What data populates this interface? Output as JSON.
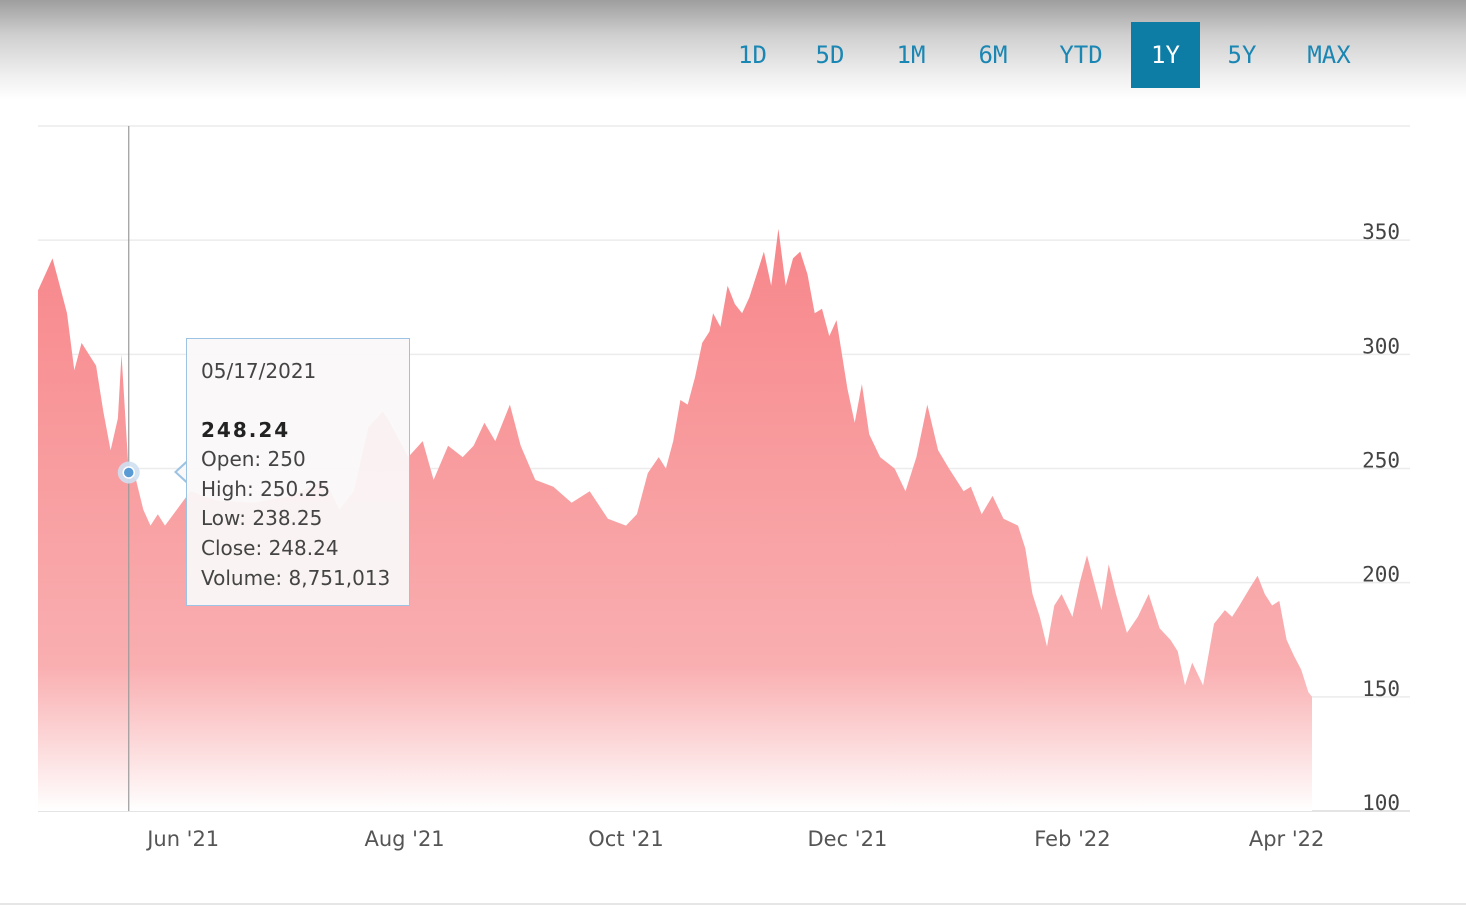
{
  "range_selector": {
    "items": [
      "1D",
      "5D",
      "1M",
      "6M",
      "YTD",
      "1Y",
      "5Y",
      "MAX"
    ],
    "active": "1Y",
    "accent_color": "#0e7da6",
    "text_color": "#1a86b3"
  },
  "tooltip": {
    "date": "05/17/2021",
    "price": "248.24",
    "open": "Open: 250",
    "high": "High: 250.25",
    "low": "Low: 238.25",
    "close": "Close: 248.24",
    "volume": "Volume: 8,751,013"
  },
  "chart_data": {
    "type": "area",
    "title": "",
    "xlabel": "",
    "ylabel": "",
    "ylim": [
      100,
      400
    ],
    "y_ticks": [
      100,
      150,
      200,
      250,
      300,
      350
    ],
    "x_ticks": [
      {
        "date": "2021-06-01",
        "label": "Jun '21"
      },
      {
        "date": "2021-08-01",
        "label": "Aug '21"
      },
      {
        "date": "2021-10-01",
        "label": "Oct '21"
      },
      {
        "date": "2021-12-01",
        "label": "Dec '21"
      },
      {
        "date": "2022-02-01",
        "label": "Feb '22"
      },
      {
        "date": "2022-04-01",
        "label": "Apr '22"
      }
    ],
    "x_range": [
      "2021-04-22",
      "2022-04-08"
    ],
    "grid": true,
    "legend": "none",
    "fill_color": "#f7888c",
    "highlight": {
      "date": "2021-05-17",
      "value": 248.24
    },
    "series": [
      {
        "points": [
          [
            "2021-04-22",
            328
          ],
          [
            "2021-04-24",
            335
          ],
          [
            "2021-04-26",
            342
          ],
          [
            "2021-04-28",
            330
          ],
          [
            "2021-04-30",
            318
          ],
          [
            "2021-05-02",
            293
          ],
          [
            "2021-05-04",
            305
          ],
          [
            "2021-05-06",
            300
          ],
          [
            "2021-05-08",
            295
          ],
          [
            "2021-05-10",
            275
          ],
          [
            "2021-05-12",
            258
          ],
          [
            "2021-05-14",
            272
          ],
          [
            "2021-05-15",
            300
          ],
          [
            "2021-05-17",
            248.24
          ],
          [
            "2021-05-19",
            245
          ],
          [
            "2021-05-21",
            232
          ],
          [
            "2021-05-23",
            225
          ],
          [
            "2021-05-25",
            230
          ],
          [
            "2021-05-27",
            225
          ],
          [
            "2021-06-03",
            240
          ],
          [
            "2021-06-10",
            236
          ],
          [
            "2021-06-20",
            235
          ],
          [
            "2021-07-01",
            238
          ],
          [
            "2021-07-10",
            245
          ],
          [
            "2021-07-14",
            232
          ],
          [
            "2021-07-18",
            240
          ],
          [
            "2021-07-22",
            268
          ],
          [
            "2021-07-26",
            275
          ],
          [
            "2021-07-28",
            270
          ],
          [
            "2021-08-02",
            255
          ],
          [
            "2021-08-06",
            262
          ],
          [
            "2021-08-09",
            245
          ],
          [
            "2021-08-13",
            260
          ],
          [
            "2021-08-17",
            255
          ],
          [
            "2021-08-20",
            260
          ],
          [
            "2021-08-23",
            270
          ],
          [
            "2021-08-26",
            262
          ],
          [
            "2021-08-30",
            278
          ],
          [
            "2021-09-02",
            260
          ],
          [
            "2021-09-06",
            245
          ],
          [
            "2021-09-11",
            242
          ],
          [
            "2021-09-16",
            235
          ],
          [
            "2021-09-21",
            240
          ],
          [
            "2021-09-26",
            228
          ],
          [
            "2021-10-01",
            225
          ],
          [
            "2021-10-04",
            230
          ],
          [
            "2021-10-07",
            248
          ],
          [
            "2021-10-10",
            255
          ],
          [
            "2021-10-12",
            250
          ],
          [
            "2021-10-14",
            262
          ],
          [
            "2021-10-16",
            280
          ],
          [
            "2021-10-18",
            278
          ],
          [
            "2021-10-20",
            290
          ],
          [
            "2021-10-22",
            305
          ],
          [
            "2021-10-24",
            310
          ],
          [
            "2021-10-25",
            318
          ],
          [
            "2021-10-27",
            312
          ],
          [
            "2021-10-29",
            330
          ],
          [
            "2021-10-31",
            322
          ],
          [
            "2021-11-02",
            318
          ],
          [
            "2021-11-04",
            325
          ],
          [
            "2021-11-06",
            335
          ],
          [
            "2021-11-08",
            345
          ],
          [
            "2021-11-10",
            330
          ],
          [
            "2021-11-12",
            355
          ],
          [
            "2021-11-14",
            330
          ],
          [
            "2021-11-16",
            342
          ],
          [
            "2021-11-18",
            345
          ],
          [
            "2021-11-20",
            335
          ],
          [
            "2021-11-22",
            318
          ],
          [
            "2021-11-24",
            320
          ],
          [
            "2021-11-26",
            308
          ],
          [
            "2021-11-28",
            315
          ],
          [
            "2021-12-01",
            285
          ],
          [
            "2021-12-03",
            270
          ],
          [
            "2021-12-05",
            287
          ],
          [
            "2021-12-07",
            265
          ],
          [
            "2021-12-10",
            255
          ],
          [
            "2021-12-14",
            250
          ],
          [
            "2021-12-17",
            240
          ],
          [
            "2021-12-20",
            255
          ],
          [
            "2021-12-23",
            278
          ],
          [
            "2021-12-26",
            258
          ],
          [
            "2021-12-29",
            250
          ],
          [
            "2022-01-02",
            240
          ],
          [
            "2022-01-04",
            242
          ],
          [
            "2022-01-07",
            230
          ],
          [
            "2022-01-10",
            238
          ],
          [
            "2022-01-13",
            228
          ],
          [
            "2022-01-17",
            225
          ],
          [
            "2022-01-19",
            215
          ],
          [
            "2022-01-21",
            195
          ],
          [
            "2022-01-23",
            185
          ],
          [
            "2022-01-25",
            172
          ],
          [
            "2022-01-27",
            190
          ],
          [
            "2022-01-29",
            195
          ],
          [
            "2022-02-01",
            185
          ],
          [
            "2022-02-03",
            200
          ],
          [
            "2022-02-05",
            212
          ],
          [
            "2022-02-07",
            200
          ],
          [
            "2022-02-09",
            188
          ],
          [
            "2022-02-11",
            208
          ],
          [
            "2022-02-13",
            195
          ],
          [
            "2022-02-16",
            178
          ],
          [
            "2022-02-19",
            185
          ],
          [
            "2022-02-22",
            195
          ],
          [
            "2022-02-25",
            180
          ],
          [
            "2022-02-28",
            175
          ],
          [
            "2022-03-02",
            170
          ],
          [
            "2022-03-04",
            155
          ],
          [
            "2022-03-06",
            165
          ],
          [
            "2022-03-09",
            155
          ],
          [
            "2022-03-12",
            182
          ],
          [
            "2022-03-15",
            188
          ],
          [
            "2022-03-17",
            185
          ],
          [
            "2022-03-19",
            190
          ],
          [
            "2022-03-22",
            198
          ],
          [
            "2022-03-24",
            203
          ],
          [
            "2022-03-26",
            195
          ],
          [
            "2022-03-28",
            190
          ],
          [
            "2022-03-30",
            192
          ],
          [
            "2022-04-01",
            175
          ],
          [
            "2022-04-03",
            168
          ],
          [
            "2022-04-05",
            162
          ],
          [
            "2022-04-07",
            152
          ],
          [
            "2022-04-08",
            150
          ]
        ]
      }
    ]
  }
}
